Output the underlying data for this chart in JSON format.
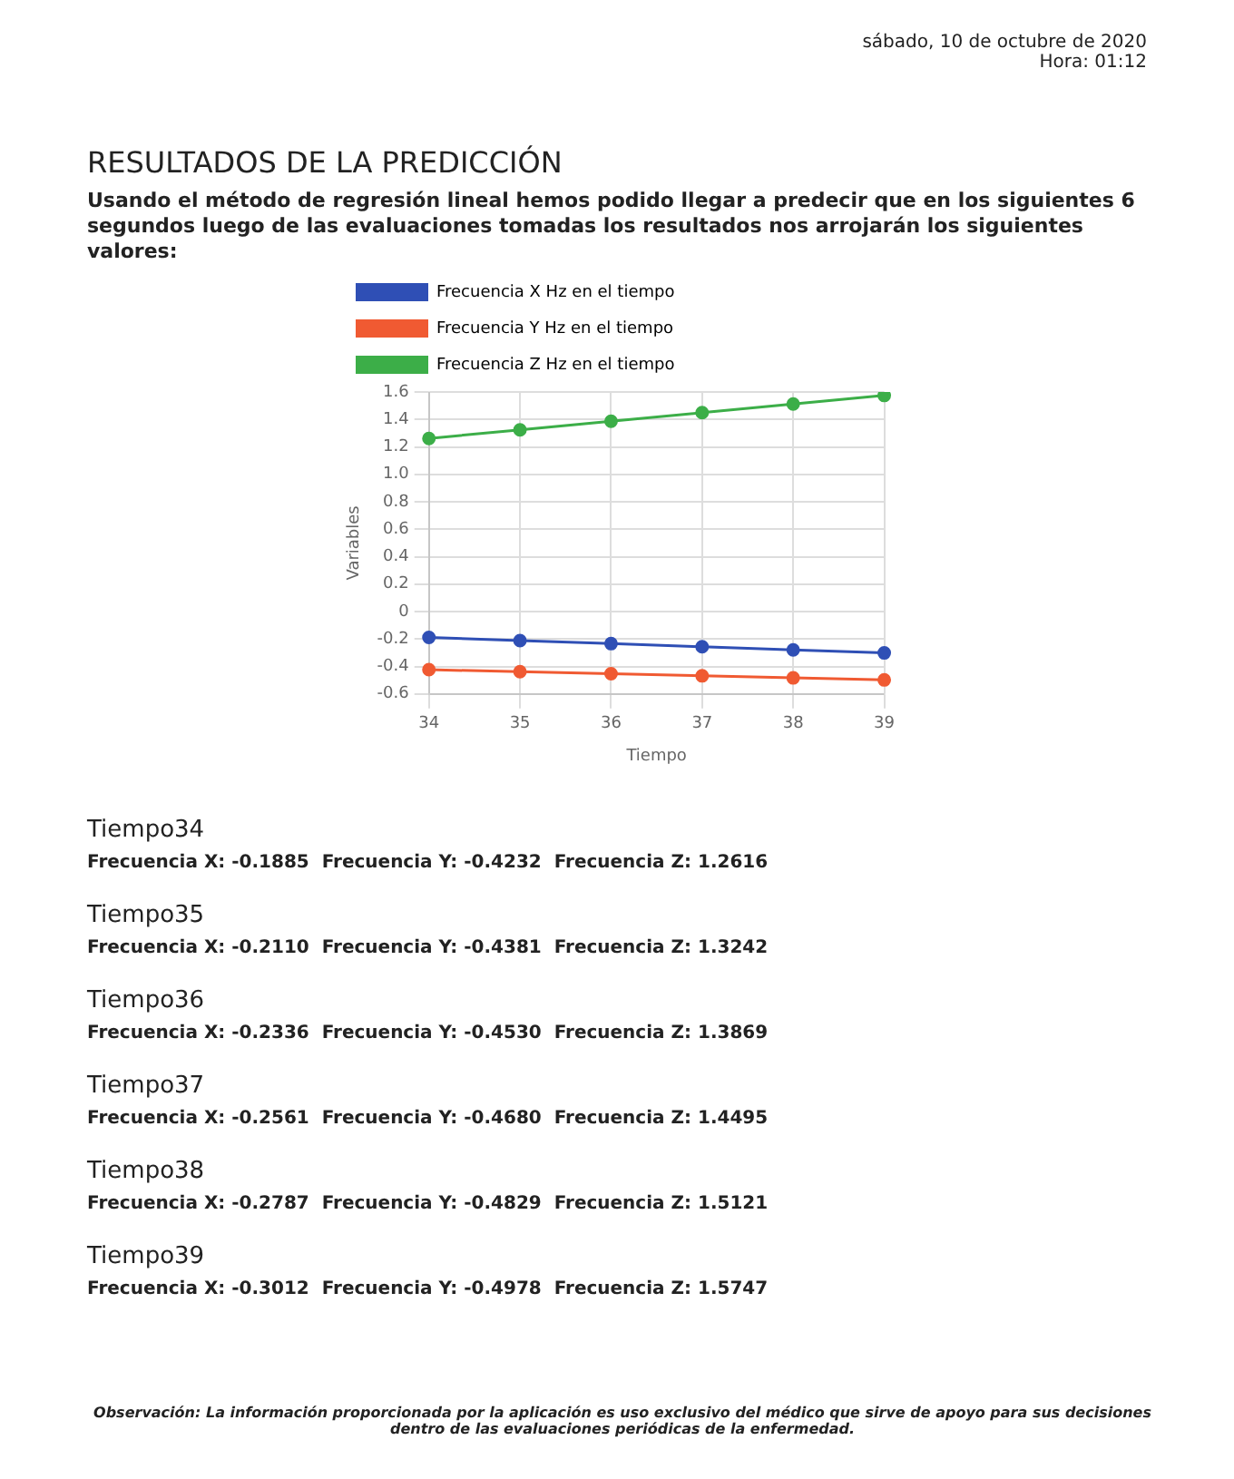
{
  "chart_data": {
    "type": "line",
    "title": "RESULTADOS DE LA PREDICCIÓN",
    "subtitle": "Usando el método de regresión lineal hemos podido llegar a predecir que en los siguientes 6 segundos luego de las evaluaciones tomadas los resultados nos arrojarán los siguientes valores:",
    "xlabel": "Tiempo",
    "ylabel": "Variables",
    "categories": [
      "34",
      "35",
      "36",
      "37",
      "38",
      "39"
    ],
    "series": [
      {
        "name": "Frecuencia X Hz en el tiempo",
        "color": "#2f4fb5",
        "values": [
          -0.1885,
          -0.211,
          -0.2336,
          -0.2561,
          -0.2787,
          -0.3012
        ]
      },
      {
        "name": "Frecuencia Y Hz en el tiempo",
        "color": "#f05a32",
        "values": [
          -0.4232,
          -0.4381,
          -0.453,
          -0.468,
          -0.4829,
          -0.4978
        ]
      },
      {
        "name": "Frecuencia Z Hz en el tiempo",
        "color": "#3cae48",
        "values": [
          1.2616,
          1.3242,
          1.3869,
          1.4495,
          1.5121,
          1.5747
        ]
      }
    ],
    "ylim": [
      -0.6,
      1.6
    ],
    "yticks": [
      {
        "value": -0.6,
        "label": "-0.6"
      },
      {
        "value": -0.4,
        "label": "-0.4"
      },
      {
        "value": -0.2,
        "label": "-0.2"
      },
      0,
      {
        "value": 0.2,
        "label": "0.2"
      },
      {
        "value": 0.4,
        "label": "0.4"
      },
      {
        "value": 0.6,
        "label": "0.6"
      },
      {
        "value": 0.8,
        "label": "0.8"
      },
      {
        "value": 1,
        "label": "1.0"
      },
      {
        "value": 1.2,
        "label": "1.2"
      },
      {
        "value": 1.4,
        "label": "1.4"
      },
      {
        "value": 1.6,
        "label": "1.6"
      }
    ],
    "grid": true,
    "legend": "top",
    "marker": "circle",
    "line_style": "solid",
    "annotations": [
      "sábado, 10 de octubre de 2020",
      "Hora: 01:12",
      "Tiempo34",
      "Frecuencia X: -0.1885  Frecuencia Y: -0.4232  Frecuencia Z: 1.2616",
      "Tiempo35",
      "Frecuencia X: -0.2110  Frecuencia Y: -0.4381  Frecuencia Z: 1.3242",
      "Tiempo36",
      "Frecuencia X: -0.2336  Frecuencia Y: -0.4530  Frecuencia Z: 1.3869",
      "Tiempo37",
      "Frecuencia X: -0.2561  Frecuencia Y: -0.4680  Frecuencia Z: 1.4495",
      "Tiempo38",
      "Frecuencia X: -0.2787  Frecuencia Y: -0.4829  Frecuencia Z: 1.5121",
      "Tiempo39",
      "Frecuencia X: -0.3012  Frecuencia Y: -0.4978  Frecuencia Z: 1.5747",
      "Observación: La información proporcionada por la aplicación es uso exclusivo del médico que sirve de apoyo para sus decisiones dentro de las evaluaciones periódicas de la enfermedad."
    ]
  }
}
